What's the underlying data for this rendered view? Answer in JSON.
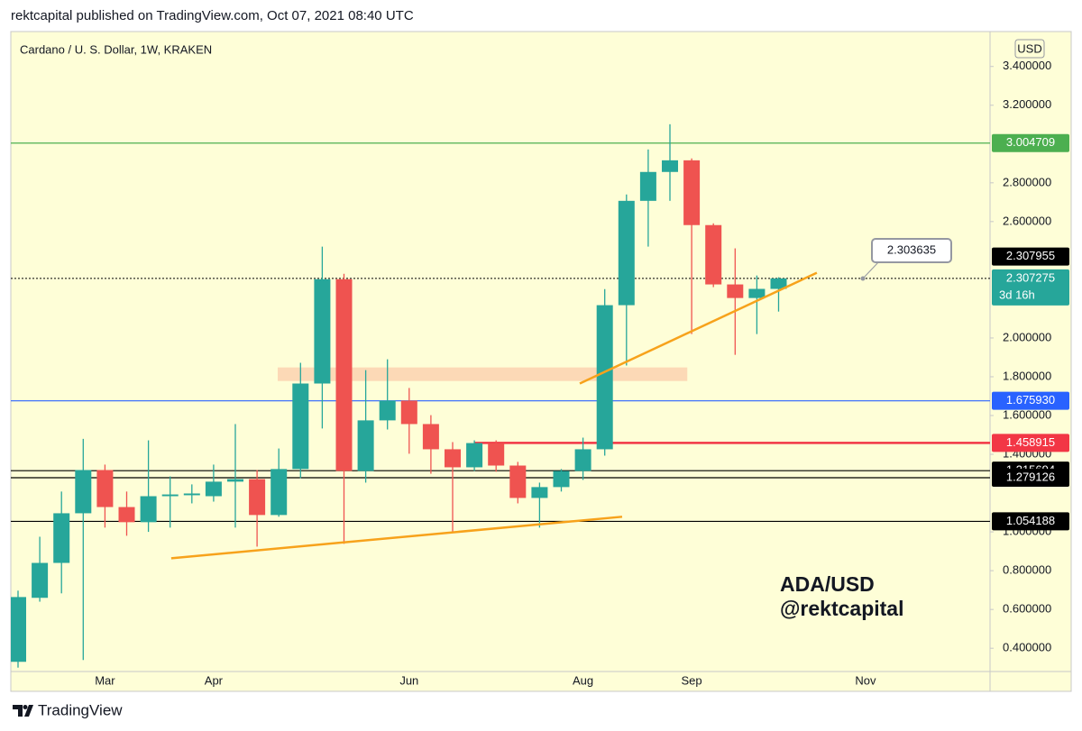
{
  "header": {
    "title": "rektcapital published on TradingView.com, Oct 07, 2021 08:40 UTC"
  },
  "footer": {
    "brand": "TradingView"
  },
  "chart_data": {
    "type": "candlestick",
    "title": "Cardano / U. S. Dollar, 1W, KRAKEN",
    "currency": "USD",
    "watermark": [
      "ADA/USD",
      "@rektcapital"
    ],
    "categories": [
      null,
      null,
      null,
      null,
      "Mar",
      null,
      null,
      null,
      null,
      "Apr",
      null,
      null,
      null,
      null,
      null,
      null,
      null,
      null,
      "Jun",
      null,
      null,
      null,
      null,
      null,
      null,
      null,
      "Aug",
      null,
      null,
      null,
      null,
      "Sep",
      null,
      null,
      null,
      null,
      null,
      null,
      null,
      "Nov",
      null,
      null,
      null,
      null,
      null
    ],
    "open": [
      0.33,
      0.66,
      0.84,
      1.096,
      1.319,
      1.128,
      1.05,
      1.184,
      1.189,
      1.184,
      1.259,
      1.272,
      1.087,
      1.324,
      1.765,
      2.303,
      1.314,
      1.575,
      1.677,
      1.556,
      1.426,
      1.333,
      1.458,
      1.342,
      1.175,
      1.231,
      1.314,
      1.426,
      2.169,
      2.707,
      2.856,
      2.916,
      2.582,
      2.276,
      2.206,
      2.253,
      null,
      null,
      null,
      null,
      null,
      null,
      null,
      null,
      null
    ],
    "high": [
      0.697,
      0.975,
      1.208,
      1.48,
      1.347,
      1.208,
      1.472,
      1.286,
      1.245,
      1.347,
      1.556,
      1.319,
      1.43,
      1.872,
      2.471,
      2.331,
      1.834,
      1.89,
      1.742,
      1.602,
      1.463,
      1.472,
      1.472,
      1.361,
      1.254,
      1.324,
      1.486,
      2.252,
      2.74,
      2.972,
      3.102,
      2.926,
      2.591,
      2.462,
      2.322,
      2.313,
      null,
      null,
      null,
      null,
      null,
      null,
      null,
      null,
      null
    ],
    "low": [
      0.3,
      0.64,
      0.683,
      0.339,
      1.022,
      0.98,
      1.0,
      1.022,
      1.147,
      1.156,
      1.022,
      0.924,
      1.078,
      1.277,
      1.533,
      0.938,
      1.254,
      1.528,
      1.403,
      1.3,
      1.0,
      1.314,
      1.31,
      1.147,
      1.022,
      1.208,
      1.268,
      1.393,
      1.858,
      2.471,
      2.707,
      2.02,
      2.262,
      1.913,
      2.02,
      2.136,
      null,
      null,
      null,
      null,
      null,
      null,
      null,
      null,
      null
    ],
    "close": [
      0.664,
      0.84,
      1.096,
      1.319,
      1.128,
      1.05,
      1.184,
      1.193,
      1.198,
      1.259,
      1.272,
      1.087,
      1.324,
      1.765,
      2.303,
      1.314,
      1.575,
      1.677,
      1.556,
      1.426,
      1.333,
      1.458,
      1.342,
      1.175,
      1.231,
      1.314,
      1.426,
      2.169,
      2.707,
      2.856,
      2.916,
      2.582,
      2.276,
      2.206,
      2.253,
      2.307,
      null,
      null,
      null,
      null,
      null,
      null,
      null,
      null,
      null
    ],
    "up_color": "#26a69a",
    "down_color": "#ef5350",
    "ylim": [
      0.28,
      3.58
    ],
    "yticks": [
      {
        "value": 0.4,
        "label": "0.400000"
      },
      {
        "value": 0.6,
        "label": "0.600000"
      },
      {
        "value": 0.8,
        "label": "0.800000"
      },
      {
        "value": 1.0,
        "label": "1.000000"
      },
      {
        "value": 1.4,
        "label": "1.400000"
      },
      {
        "value": 1.6,
        "label": "1.600000"
      },
      {
        "value": 1.8,
        "label": "1.800000"
      },
      {
        "value": 2.0,
        "label": "2.000000"
      },
      {
        "value": 2.6,
        "label": "2.600000"
      },
      {
        "value": 2.8,
        "label": "2.800000"
      },
      {
        "value": 3.2,
        "label": "3.200000"
      },
      {
        "value": 3.4,
        "label": "3.400000"
      }
    ],
    "grid": false,
    "levels": [
      {
        "value": 3.004709,
        "color": "#4caf50"
      },
      {
        "value": 1.67593,
        "label": "1.675930",
        "color": "#2962ff"
      },
      {
        "value": 1.458915,
        "color": "#f23645",
        "from": 21
      },
      {
        "value": 1.315694,
        "color": "#000000"
      },
      {
        "value": 1.279126,
        "color": "#000000"
      },
      {
        "value": 1.054188,
        "color": "#000000"
      }
    ],
    "last_price": {
      "value": 2.307275,
      "countdown": "3d 16h",
      "color": "#26a69a"
    },
    "crosshair_price": 2.307955,
    "measure_label": "2.303635",
    "drawings": [
      {
        "kind": "trendline",
        "color": "#f7a21b",
        "x": [
          7.05,
          27.8
        ],
        "y": [
          0.864,
          1.078
        ]
      },
      {
        "kind": "trendline",
        "color": "#f7a21b",
        "x": [
          25.85,
          36.76
        ],
        "y": [
          1.765,
          2.336
        ]
      },
      {
        "kind": "zone",
        "color": "#fcd9b6",
        "x": [
          11.95,
          30.8
        ],
        "y": [
          1.778,
          1.848
        ]
      }
    ]
  }
}
